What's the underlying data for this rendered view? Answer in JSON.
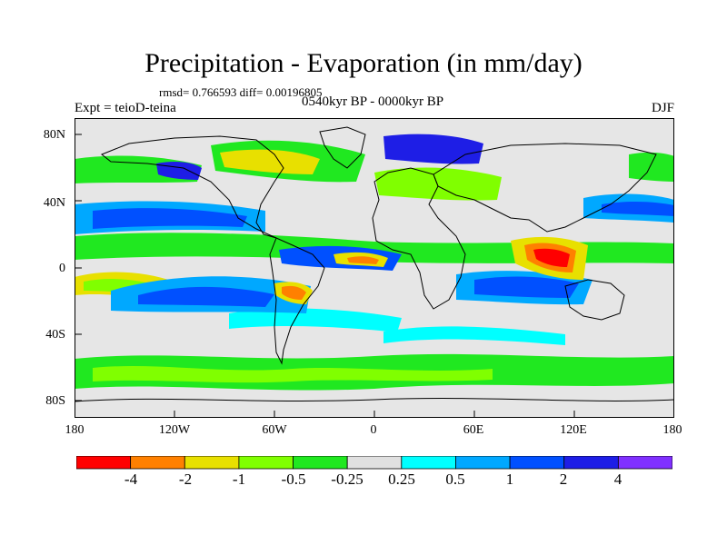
{
  "title": "Precipitation - Evaporation (in mm/day)",
  "stats": "rmsd= 0.766593 diff= 0.00196805",
  "experiment": "Expt = teioD-teina",
  "period": "0540kyr BP - 0000kyr BP",
  "season": "DJF",
  "y_ticks": [
    "80N",
    "40N",
    "0",
    "40S",
    "80S"
  ],
  "x_ticks": [
    "180",
    "120W",
    "60W",
    "0",
    "60E",
    "120E",
    "180"
  ],
  "colorbar": {
    "labels": [
      "-4",
      "-2",
      "-1",
      "-0.5",
      "-0.25",
      "0.25",
      "0.5",
      "1",
      "2",
      "4"
    ],
    "colors": [
      "#ff0000",
      "#ff8000",
      "#e8e000",
      "#80ff00",
      "#20e820",
      "#e0e0e0",
      "#00ffff",
      "#00a8ff",
      "#0050ff",
      "#1e1ee6",
      "#8030ff"
    ]
  },
  "map": {
    "background_color": "#e6e6e6",
    "coastline_color": "#000000"
  }
}
